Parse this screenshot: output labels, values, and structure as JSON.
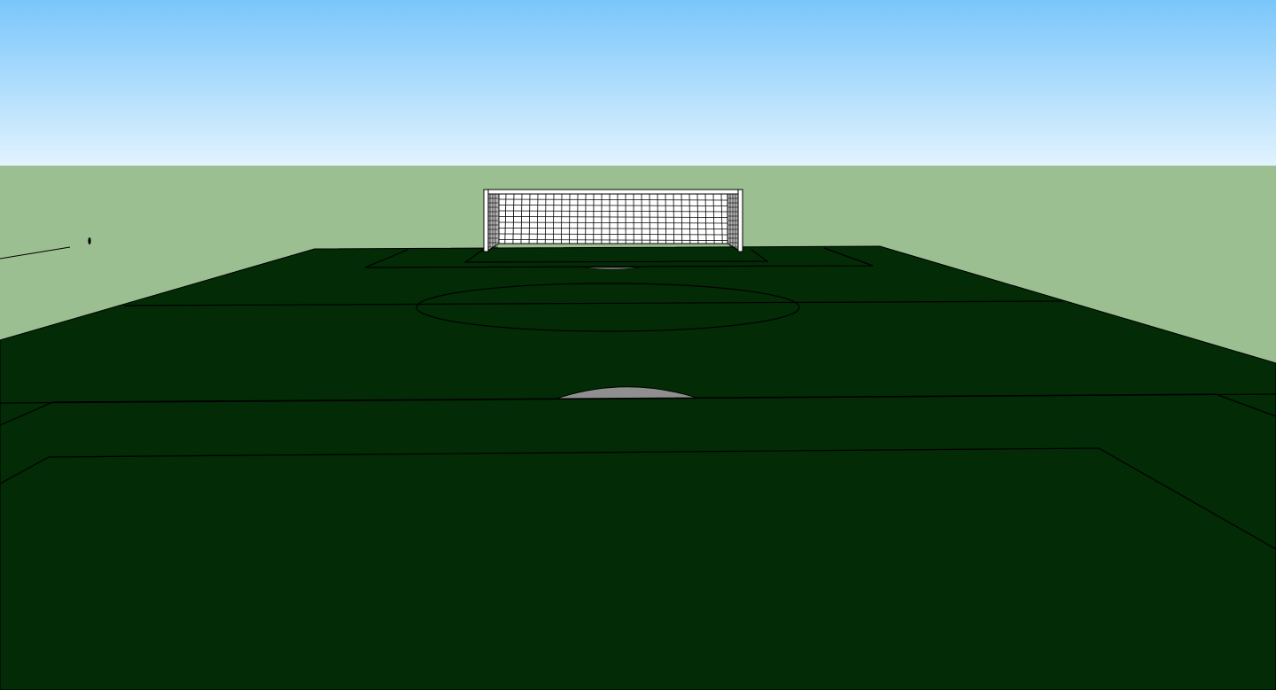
{
  "scene": {
    "view": "3d-model-viewport",
    "subject": "soccer-pitch",
    "colors": {
      "sky_top": "#79c6fb",
      "sky_horizon": "#e2f3fe",
      "ground": "#9cbf92",
      "pitch": "#032b06",
      "pitch_lines": "#000000",
      "spot_fill": "#8f8f8f",
      "goal_frame": "#ffffff",
      "goal_net": "#000000"
    },
    "icons": [
      "goal-net-icon",
      "ground-marker-icon"
    ]
  }
}
